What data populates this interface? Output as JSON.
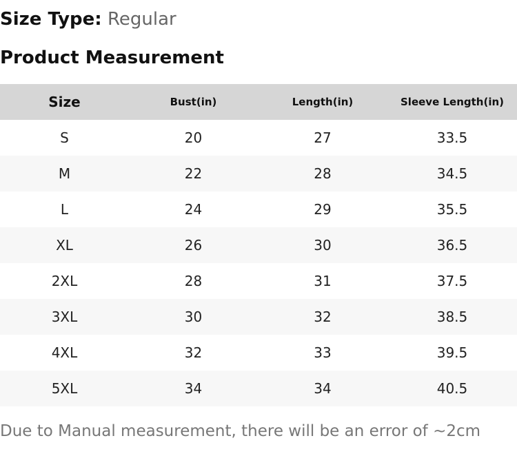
{
  "size_type": {
    "label": "Size Type:",
    "value": "Regular"
  },
  "section_title": "Product Measurement",
  "table": {
    "headers": [
      "Size",
      "Bust(in)",
      "Length(in)",
      "Sleeve Length(in)"
    ],
    "rows": [
      [
        "S",
        "20",
        "27",
        "33.5"
      ],
      [
        "M",
        "22",
        "28",
        "34.5"
      ],
      [
        "L",
        "24",
        "29",
        "35.5"
      ],
      [
        "XL",
        "26",
        "30",
        "36.5"
      ],
      [
        "2XL",
        "28",
        "31",
        "37.5"
      ],
      [
        "3XL",
        "30",
        "32",
        "38.5"
      ],
      [
        "4XL",
        "32",
        "33",
        "39.5"
      ],
      [
        "5XL",
        "34",
        "34",
        "40.5"
      ]
    ]
  },
  "note": "Due to Manual measurement, there will be an error of ~2cm",
  "colors": {
    "header_bg": "#d6d6d6",
    "stripe_bg": "#f7f7f7",
    "muted_text": "#777777"
  }
}
